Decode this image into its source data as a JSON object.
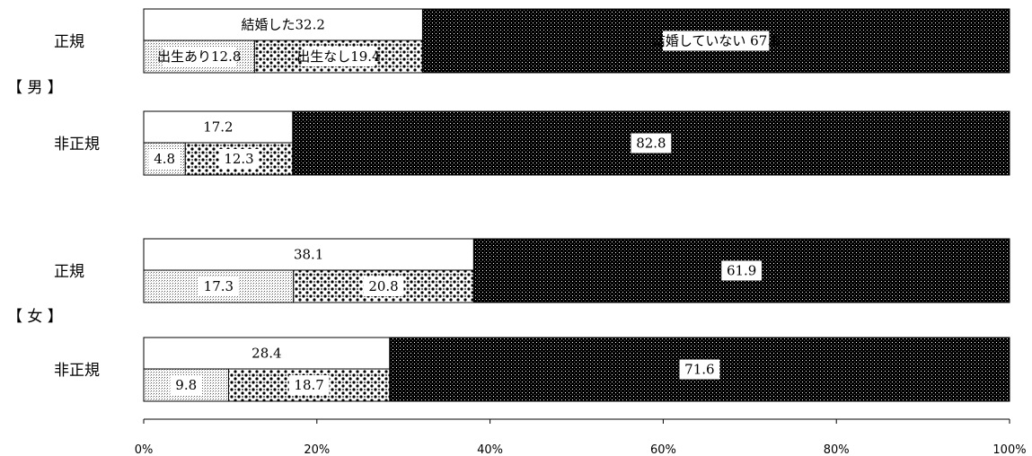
{
  "chart_data": {
    "type": "bar",
    "orientation": "horizontal",
    "stacked": true,
    "percent_axis": true,
    "xlim": [
      0,
      100
    ],
    "x_ticks": [
      "0%",
      "20%",
      "40%",
      "60%",
      "80%",
      "100%"
    ],
    "groups": [
      {
        "label": "【 男 】",
        "rows": [
          "正規",
          "非正規"
        ]
      },
      {
        "label": "【 女 】",
        "rows": [
          "正規",
          "非正規"
        ]
      }
    ],
    "bars": [
      {
        "group": "【 男 】",
        "row": "正規",
        "married": 32.2,
        "not_married": 67.8,
        "birth": 12.8,
        "no_birth": 19.4,
        "labels": {
          "married": "結婚した32.2",
          "not_married": "結婚していない 67.8",
          "birth": "出生あり12.8",
          "no_birth": "出生なし19.4"
        }
      },
      {
        "group": "【 男 】",
        "row": "非正規",
        "married": 17.2,
        "not_married": 82.8,
        "birth": 4.8,
        "no_birth": 12.3,
        "labels": {
          "married": "17.2",
          "not_married": "82.8",
          "birth": "4.8",
          "no_birth": "12.3"
        }
      },
      {
        "group": "【 女 】",
        "row": "正規",
        "married": 38.1,
        "not_married": 61.9,
        "birth": 17.3,
        "no_birth": 20.8,
        "labels": {
          "married": "38.1",
          "not_married": "61.9",
          "birth": "17.3",
          "no_birth": "20.8"
        }
      },
      {
        "group": "【 女 】",
        "row": "非正規",
        "married": 28.4,
        "not_married": 71.6,
        "birth": 9.8,
        "no_birth": 18.7,
        "labels": {
          "married": "28.4",
          "not_married": "71.6",
          "birth": "9.8",
          "no_birth": "18.7"
        }
      }
    ]
  },
  "colors": {
    "married_fill": "#ffffff",
    "not_married_fill": "#000000",
    "outline": "#000000",
    "axis": "#000000"
  }
}
